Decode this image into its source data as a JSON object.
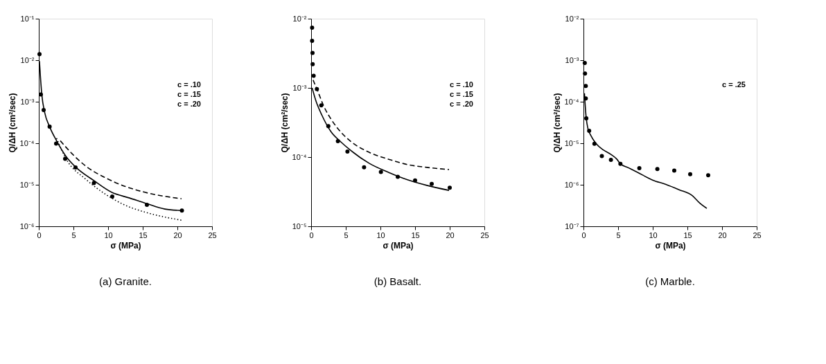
{
  "chart_data": [
    {
      "type": "line",
      "title": "(a) Granite.",
      "xlabel": "σ (MPa)",
      "ylabel": "Q/ΔH (cm²/sec)",
      "log": "y",
      "grid": false,
      "xlim": [
        0,
        25
      ],
      "xticks": [
        0,
        5,
        10,
        15,
        20,
        25
      ],
      "ylim": [
        1e-06,
        0.1
      ],
      "yticks": [
        {
          "value": 0.1,
          "label": "10⁻¹"
        },
        {
          "value": 0.01,
          "label": "10⁻²"
        },
        {
          "value": 0.001,
          "label": "10⁻³"
        },
        {
          "value": 0.0001,
          "label": "10⁻⁴"
        },
        {
          "value": 1e-05,
          "label": "10⁻⁵"
        },
        {
          "value": 1e-06,
          "label": "10⁻⁶"
        }
      ],
      "annotations": [
        "c = .10",
        "c = .15",
        "c = .20"
      ],
      "series": [
        {
          "type": "scatter",
          "marker": "circle",
          "color": "#000000",
          "x": [
            0.1,
            0.3,
            0.7,
            1.56,
            2.5,
            3.8,
            5.3,
            7.95,
            10.6,
            15.6,
            20.65
          ],
          "values": [
            0.014,
            0.0015,
            0.00063,
            0.00025,
            9.8e-05,
            4.2e-05,
            2.6e-05,
            1.1e-05,
            5.2e-06,
            3.3e-06,
            2.4e-06
          ]
        },
        {
          "type": "line",
          "line_style": "solid",
          "color": "#000000",
          "x": [
            0.09,
            0.43,
            0.85,
            1.56,
            2.56,
            3.98,
            5.4,
            7.95,
            10.5,
            13.1,
            15.6,
            18.2,
            20.6
          ],
          "values": [
            0.0095,
            0.0015,
            0.00055,
            0.00025,
            0.000115,
            4.7e-05,
            2.6e-05,
            1.26e-05,
            6.6e-06,
            4.8e-06,
            3.5e-06,
            2.6e-06,
            2.4e-06
          ]
        },
        {
          "type": "line",
          "line_style": "dashed",
          "color": "#000000",
          "x": [
            3.1,
            4.8,
            6.8,
            9.7,
            12.5,
            15.3,
            20.6
          ],
          "values": [
            0.000115,
            5.6e-05,
            2.8e-05,
            1.45e-05,
            9.1e-06,
            6.6e-06,
            4.6e-06
          ]
        },
        {
          "type": "line",
          "line_style": "dotted",
          "color": "#000000",
          "x": [
            2.56,
            3.98,
            6.8,
            9.7,
            12.5,
            15.3,
            20.6
          ],
          "values": [
            0.000132,
            4.1e-05,
            1.35e-05,
            5.8e-06,
            3.2e-06,
            2.2e-06,
            1.4e-06
          ]
        }
      ]
    },
    {
      "type": "line",
      "title": "(b) Basalt.",
      "xlabel": "σ (MPa)",
      "ylabel": "Q/ΔH (cm²/sec)",
      "log": "y",
      "grid": false,
      "xlim": [
        0,
        25
      ],
      "xticks": [
        0,
        5,
        10,
        15,
        20,
        25
      ],
      "ylim": [
        1e-05,
        0.01
      ],
      "yticks": [
        {
          "value": 0.01,
          "label": "10⁻²"
        },
        {
          "value": 0.001,
          "label": "10⁻³"
        },
        {
          "value": 0.0001,
          "label": "10⁻⁴"
        },
        {
          "value": 1e-05,
          "label": "10⁻⁵"
        }
      ],
      "annotations": [
        "c = .10",
        "c = .15",
        "c = .20"
      ],
      "series": [
        {
          "type": "scatter",
          "marker": "circle",
          "color": "#000000",
          "x": [
            0.14,
            0.14,
            0.2,
            0.22,
            0.36,
            0.83,
            1.46,
            2.48,
            3.86,
            5.24,
            7.64,
            10.07,
            12.5,
            15.0,
            17.4,
            20.0
          ],
          "values": [
            0.0074,
            0.0048,
            0.0032,
            0.0022,
            0.0015,
            0.00096,
            0.00056,
            0.00028,
            0.00017,
            0.00012,
            7.1e-05,
            6.1e-05,
            5.2e-05,
            4.6e-05,
            4.1e-05,
            3.6e-05
          ]
        },
        {
          "type": "line",
          "line_style": "solid",
          "color": "#000000",
          "x": [
            0.14,
            0.69,
            1.52,
            2.9,
            4.28,
            5.66,
            8.4,
            11.2,
            13.9,
            16.7,
            19.9
          ],
          "values": [
            0.001,
            0.00065,
            0.00041,
            0.00023,
            0.000166,
            0.000126,
            8.1e-05,
            6e-05,
            4.7e-05,
            3.9e-05,
            3.3e-05
          ]
        },
        {
          "type": "line",
          "line_style": "dashed",
          "color": "#000000",
          "x": [
            0.28,
            0.97,
            1.8,
            2.9,
            4.28,
            5.66,
            8.4,
            11.2,
            13.9,
            16.7,
            19.9
          ],
          "values": [
            0.0013,
            0.00089,
            0.00055,
            0.00035,
            0.00023,
            0.00017,
            0.000117,
            9.3e-05,
            7.8e-05,
            7.1e-05,
            6.6e-05
          ]
        }
      ]
    },
    {
      "type": "line",
      "title": "(c) Marble.",
      "xlabel": "σ (MPa)",
      "ylabel": "Q/ΔH (cm²/sec)",
      "log": "y",
      "grid": false,
      "xlim": [
        0,
        25
      ],
      "xticks": [
        0,
        5,
        10,
        15,
        20,
        25
      ],
      "ylim": [
        1e-07,
        0.01
      ],
      "yticks": [
        {
          "value": 0.01,
          "label": "10⁻²"
        },
        {
          "value": 0.001,
          "label": "10⁻³"
        },
        {
          "value": 0.0001,
          "label": "10⁻⁴"
        },
        {
          "value": 1e-05,
          "label": "10⁻⁵"
        },
        {
          "value": 1e-06,
          "label": "10⁻⁶"
        },
        {
          "value": 1e-07,
          "label": "10⁻⁷"
        }
      ],
      "annotations": [
        "c = .25"
      ],
      "series": [
        {
          "type": "scatter",
          "marker": "circle",
          "color": "#000000",
          "x": [
            0.19,
            0.22,
            0.33,
            0.33,
            0.41,
            0.82,
            1.58,
            2.65,
            3.96,
            5.33,
            8.06,
            10.66,
            13.1,
            15.4,
            18.0
          ],
          "values": [
            0.00086,
            0.00048,
            0.00024,
            0.00012,
            4e-05,
            2e-05,
            9.7e-06,
            4.9e-06,
            4e-06,
            3.2e-06,
            2.5e-06,
            2.4e-06,
            2.2e-06,
            1.8e-06,
            1.7e-06
          ]
        },
        {
          "type": "line",
          "line_style": "solid",
          "color": "#000000",
          "x": [
            0.14,
            0.36,
            0.68,
            0.96,
            1.78,
            2.87,
            3.96,
            4.78,
            5.33,
            6.42,
            7.79,
            9.97,
            11.9,
            13.8,
            15.7,
            16.8,
            17.8
          ],
          "values": [
            0.00016,
            4.7e-05,
            2.1e-05,
            1.66e-05,
            1e-05,
            6.9e-06,
            5.4e-06,
            4.2e-06,
            3.2e-06,
            2.6e-06,
            2e-06,
            1.3e-06,
            1.02e-06,
            7.6e-07,
            5.5e-07,
            3.6e-07,
            2.7e-07
          ]
        }
      ]
    }
  ]
}
